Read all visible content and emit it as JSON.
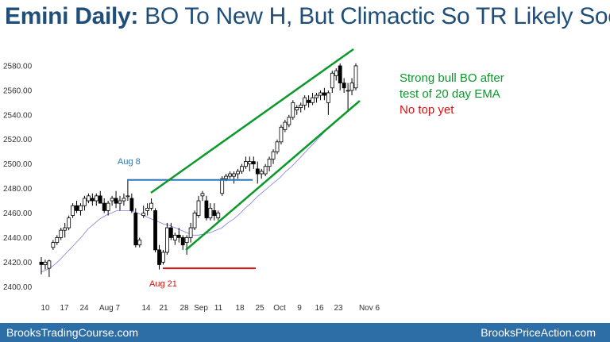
{
  "title": {
    "bold": "Emini Daily:",
    "rest": " BO To New H, But Climactic So TR Likely Soon"
  },
  "footer": {
    "left": "BrooksTradingCourse.com",
    "right": "BrooksPriceAction.com"
  },
  "chart_data": {
    "type": "candlestick",
    "title": "Emini Daily: BO To New H, But Climactic So TR Likely Soon",
    "y_axis": {
      "ticks": [
        "2400.00",
        "2420.00",
        "2440.00",
        "2460.00",
        "2480.00",
        "2500.00",
        "2520.00",
        "2540.00",
        "2560.00",
        "2580.00"
      ],
      "ylim": [
        2395,
        2590
      ]
    },
    "x_axis": {
      "ticks": [
        "10",
        "17",
        "24",
        "Aug 7",
        "14",
        "21",
        "28",
        "Sep",
        "11",
        "18",
        "25",
        "Oct",
        "9",
        "16",
        "23",
        "Nov 6"
      ]
    },
    "candles": [
      [
        2420,
        2424,
        2410,
        2418
      ],
      [
        2418,
        2422,
        2414,
        2420
      ],
      [
        2415,
        2422,
        2408,
        2421
      ],
      [
        2432,
        2438,
        2430,
        2436
      ],
      [
        2436,
        2442,
        2434,
        2440
      ],
      [
        2440,
        2448,
        2438,
        2446
      ],
      [
        2446,
        2452,
        2440,
        2448
      ],
      [
        2448,
        2458,
        2446,
        2456
      ],
      [
        2458,
        2468,
        2456,
        2466
      ],
      [
        2466,
        2470,
        2460,
        2462
      ],
      [
        2462,
        2468,
        2458,
        2466
      ],
      [
        2466,
        2474,
        2462,
        2472
      ],
      [
        2470,
        2476,
        2468,
        2474
      ],
      [
        2472,
        2476,
        2466,
        2470
      ],
      [
        2470,
        2476,
        2466,
        2474
      ],
      [
        2474,
        2478,
        2468,
        2468
      ],
      [
        2468,
        2472,
        2460,
        2462
      ],
      [
        2462,
        2470,
        2458,
        2468
      ],
      [
        2470,
        2474,
        2466,
        2472
      ],
      [
        2472,
        2478,
        2464,
        2468
      ],
      [
        2468,
        2474,
        2462,
        2470
      ],
      [
        2470,
        2476,
        2466,
        2472
      ],
      [
        2474,
        2487,
        2470,
        2474
      ],
      [
        2472,
        2476,
        2460,
        2462
      ],
      [
        2460,
        2464,
        2432,
        2434
      ],
      [
        2434,
        2440,
        2432,
        2438
      ],
      [
        2458,
        2466,
        2456,
        2460
      ],
      [
        2462,
        2468,
        2458,
        2464
      ],
      [
        2464,
        2472,
        2462,
        2468
      ],
      [
        2462,
        2464,
        2428,
        2430
      ],
      [
        2430,
        2434,
        2414,
        2418
      ],
      [
        2420,
        2430,
        2418,
        2428
      ],
      [
        2428,
        2452,
        2426,
        2448
      ],
      [
        2448,
        2452,
        2438,
        2440
      ],
      [
        2438,
        2444,
        2434,
        2442
      ],
      [
        2442,
        2448,
        2436,
        2440
      ],
      [
        2440,
        2442,
        2430,
        2434
      ],
      [
        2436,
        2442,
        2426,
        2440
      ],
      [
        2440,
        2452,
        2436,
        2448
      ],
      [
        2448,
        2462,
        2446,
        2460
      ],
      [
        2458,
        2474,
        2456,
        2470
      ],
      [
        2474,
        2478,
        2470,
        2476
      ],
      [
        2470,
        2474,
        2454,
        2456
      ],
      [
        2456,
        2468,
        2454,
        2464
      ],
      [
        2462,
        2468,
        2454,
        2458
      ],
      [
        2456,
        2462,
        2454,
        2460
      ],
      [
        2476,
        2490,
        2474,
        2488
      ],
      [
        2488,
        2492,
        2486,
        2490
      ],
      [
        2490,
        2494,
        2488,
        2492
      ],
      [
        2490,
        2494,
        2484,
        2492
      ],
      [
        2492,
        2496,
        2488,
        2494
      ],
      [
        2494,
        2500,
        2492,
        2498
      ],
      [
        2498,
        2506,
        2496,
        2502
      ],
      [
        2500,
        2506,
        2494,
        2502
      ],
      [
        2502,
        2506,
        2496,
        2500
      ],
      [
        2496,
        2502,
        2484,
        2492
      ],
      [
        2492,
        2496,
        2488,
        2494
      ],
      [
        2492,
        2500,
        2490,
        2498
      ],
      [
        2498,
        2506,
        2494,
        2504
      ],
      [
        2504,
        2512,
        2500,
        2510
      ],
      [
        2510,
        2520,
        2508,
        2518
      ],
      [
        2518,
        2532,
        2516,
        2530
      ],
      [
        2528,
        2536,
        2526,
        2534
      ],
      [
        2532,
        2540,
        2530,
        2538
      ],
      [
        2538,
        2552,
        2536,
        2550
      ],
      [
        2544,
        2548,
        2540,
        2546
      ],
      [
        2546,
        2550,
        2542,
        2548
      ],
      [
        2548,
        2556,
        2544,
        2554
      ],
      [
        2552,
        2556,
        2546,
        2550
      ],
      [
        2550,
        2558,
        2548,
        2554
      ],
      [
        2554,
        2558,
        2550,
        2556
      ],
      [
        2556,
        2560,
        2552,
        2558
      ],
      [
        2558,
        2562,
        2552,
        2556
      ],
      [
        2550,
        2560,
        2540,
        2558
      ],
      [
        2562,
        2576,
        2558,
        2574
      ],
      [
        2572,
        2578,
        2568,
        2576
      ],
      [
        2580,
        2582,
        2560,
        2566
      ],
      [
        2566,
        2570,
        2558,
        2562
      ],
      [
        2560,
        2566,
        2544,
        2560
      ],
      [
        2560,
        2570,
        2556,
        2566
      ],
      [
        2562,
        2582,
        2560,
        2580
      ]
    ],
    "ema_20": [
      2412,
      2414,
      2417,
      2421,
      2426,
      2431,
      2436,
      2441,
      2447,
      2451,
      2455,
      2458,
      2460,
      2462,
      2462,
      2462,
      2461,
      2459,
      2457,
      2455,
      2453,
      2451,
      2450,
      2448,
      2446,
      2444,
      2442,
      2442,
      2443,
      2444,
      2446,
      2448,
      2452,
      2455,
      2459,
      2464,
      2468,
      2473,
      2477,
      2481,
      2485,
      2489,
      2494,
      2498,
      2503,
      2508,
      2513,
      2518,
      2523,
      2528,
      2533,
      2537,
      2541,
      2545,
      2548
    ],
    "annotations": {
      "aug8_label": "Aug 8",
      "aug21_label": "Aug 21",
      "note_lines": [
        "Strong bull BO after",
        "test of 20 day EMA"
      ],
      "note_red": "No top yet"
    },
    "levels": {
      "aug8_high": 2487,
      "aug21_low": 2415
    },
    "channel": {
      "upper": [
        [
          22,
          2472
        ],
        [
          86,
          2584
        ]
      ],
      "lower": [
        [
          37,
          2425
        ],
        [
          89,
          2550
        ]
      ]
    }
  }
}
